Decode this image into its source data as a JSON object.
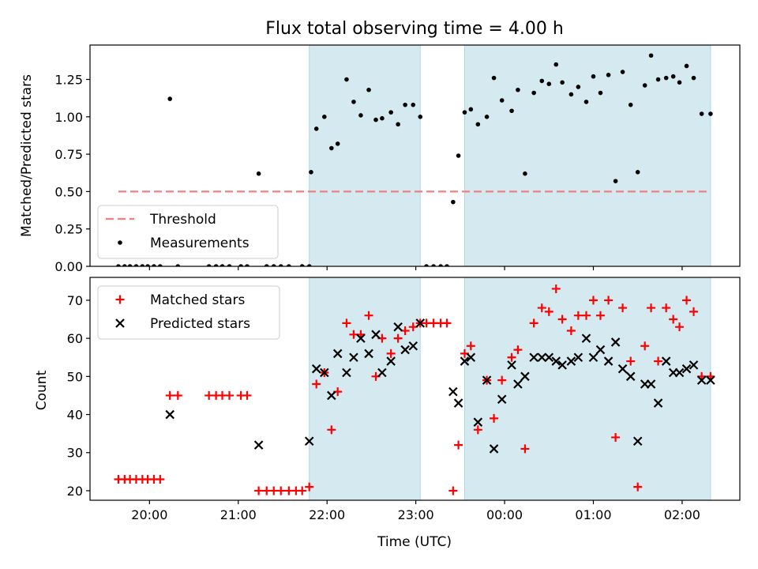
{
  "chart_data": [
    {
      "type": "scatter",
      "title": "Flux total observing time = 4.00 h",
      "xlabel": "",
      "ylabel": "Matched/Predicted stars",
      "ylim": [
        0,
        1.48
      ],
      "xlim": [
        19.33,
        26.65
      ],
      "yticks": [
        0.0,
        0.25,
        0.5,
        0.75,
        1.0,
        1.25
      ],
      "ytick_labels": [
        "0.00",
        "0.25",
        "0.50",
        "0.75",
        "1.00",
        "1.25"
      ],
      "shaded_intervals": [
        [
          21.8,
          23.05
        ],
        [
          23.55,
          26.32
        ]
      ],
      "threshold": {
        "name": "Threshold",
        "y": 0.5,
        "x_range": [
          19.65,
          26.32
        ],
        "color": "#f08080"
      },
      "series": [
        {
          "name": "Measurements",
          "marker": "dot",
          "color": "#000000",
          "x": [
            19.65,
            19.72,
            19.78,
            19.85,
            19.92,
            19.98,
            20.05,
            20.12,
            20.23,
            20.32,
            20.67,
            20.75,
            20.82,
            20.9,
            21.03,
            21.1,
            21.23,
            21.32,
            21.4,
            21.48,
            21.57,
            21.72,
            21.8,
            21.82,
            21.88,
            21.97,
            22.05,
            22.12,
            22.22,
            22.3,
            22.38,
            22.47,
            22.55,
            22.62,
            22.72,
            22.8,
            22.88,
            22.97,
            23.05,
            23.12,
            23.2,
            23.28,
            23.35,
            23.42,
            23.48,
            23.55,
            23.62,
            23.7,
            23.8,
            23.88,
            23.97,
            24.08,
            24.15,
            24.23,
            24.33,
            24.42,
            24.5,
            24.58,
            24.65,
            24.75,
            24.83,
            24.92,
            25.0,
            25.08,
            25.17,
            25.25,
            25.33,
            25.42,
            25.5,
            25.58,
            25.65,
            25.73,
            25.82,
            25.9,
            25.97,
            26.05,
            26.13,
            26.22,
            26.32
          ],
          "y": [
            0,
            0,
            0,
            0,
            0,
            0,
            0,
            0,
            1.12,
            0,
            0,
            0,
            0,
            0,
            0,
            0,
            0.62,
            0,
            0,
            0,
            0,
            0,
            0,
            0.63,
            0.92,
            1.0,
            0.79,
            0.82,
            1.25,
            1.1,
            1.01,
            1.18,
            0.98,
            0.99,
            1.03,
            0.95,
            1.08,
            1.08,
            1.0,
            0,
            0,
            0,
            0,
            0.43,
            0.74,
            1.03,
            1.05,
            0.95,
            1.0,
            1.26,
            1.11,
            1.04,
            1.18,
            0.62,
            1.16,
            1.24,
            1.22,
            1.35,
            1.23,
            1.15,
            1.2,
            1.1,
            1.27,
            1.16,
            1.28,
            0.57,
            1.3,
            1.08,
            0.63,
            1.21,
            1.41,
            1.25,
            1.26,
            1.27,
            1.23,
            1.34,
            1.26,
            1.02,
            1.02
          ]
        }
      ]
    },
    {
      "type": "scatter",
      "title": "",
      "xlabel": "Time (UTC)",
      "ylabel": "Count",
      "ylim": [
        17.5,
        76
      ],
      "xlim": [
        19.33,
        26.65
      ],
      "yticks": [
        20,
        30,
        40,
        50,
        60,
        70
      ],
      "ytick_labels": [
        "20",
        "30",
        "40",
        "50",
        "60",
        "70"
      ],
      "xticks": [
        20,
        21,
        22,
        23,
        24,
        25,
        26
      ],
      "xtick_labels": [
        "20:00",
        "21:00",
        "22:00",
        "23:00",
        "00:00",
        "01:00",
        "02:00"
      ],
      "shaded_intervals": [
        [
          21.8,
          23.05
        ],
        [
          23.55,
          26.32
        ]
      ],
      "series": [
        {
          "name": "Matched stars",
          "marker": "plus",
          "color": "#ff0000",
          "x": [
            19.65,
            19.72,
            19.78,
            19.85,
            19.92,
            19.98,
            20.05,
            20.12,
            20.23,
            20.32,
            20.67,
            20.75,
            20.82,
            20.9,
            21.03,
            21.1,
            21.23,
            21.32,
            21.4,
            21.48,
            21.57,
            21.65,
            21.72,
            21.8,
            21.88,
            21.97,
            22.05,
            22.12,
            22.22,
            22.3,
            22.38,
            22.47,
            22.55,
            22.62,
            22.72,
            22.8,
            22.88,
            22.97,
            23.05,
            23.12,
            23.2,
            23.28,
            23.35,
            23.42,
            23.48,
            23.55,
            23.62,
            23.7,
            23.8,
            23.88,
            23.97,
            24.08,
            24.15,
            24.23,
            24.33,
            24.42,
            24.5,
            24.58,
            24.65,
            24.75,
            24.83,
            24.92,
            25.0,
            25.08,
            25.17,
            25.25,
            25.33,
            25.42,
            25.5,
            25.58,
            25.65,
            25.73,
            25.82,
            25.9,
            25.97,
            26.05,
            26.13,
            26.22,
            26.32
          ],
          "y": [
            23,
            23,
            23,
            23,
            23,
            23,
            23,
            23,
            45,
            45,
            45,
            45,
            45,
            45,
            45,
            45,
            20,
            20,
            20,
            20,
            20,
            20,
            20,
            21,
            48,
            51,
            36,
            46,
            64,
            61,
            61,
            66,
            50,
            60,
            56,
            60,
            62,
            63,
            64,
            64,
            64,
            64,
            64,
            20,
            32,
            56,
            58,
            36,
            49,
            39,
            49,
            55,
            57,
            31,
            64,
            68,
            67,
            73,
            65,
            62,
            66,
            66,
            70,
            66,
            70,
            34,
            68,
            54,
            21,
            58,
            68,
            54,
            68,
            65,
            63,
            70,
            67,
            50,
            50
          ]
        },
        {
          "name": "Predicted stars",
          "marker": "x",
          "color": "#000000",
          "x": [
            20.23,
            21.23,
            21.8,
            21.88,
            21.97,
            22.05,
            22.12,
            22.22,
            22.3,
            22.38,
            22.47,
            22.55,
            22.62,
            22.72,
            22.8,
            22.88,
            22.97,
            23.05,
            23.42,
            23.48,
            23.55,
            23.62,
            23.7,
            23.8,
            23.88,
            23.97,
            24.08,
            24.15,
            24.23,
            24.33,
            24.42,
            24.5,
            24.58,
            24.65,
            24.75,
            24.83,
            24.92,
            25.0,
            25.08,
            25.17,
            25.25,
            25.33,
            25.42,
            25.5,
            25.58,
            25.65,
            25.73,
            25.82,
            25.9,
            25.97,
            26.05,
            26.13,
            26.22,
            26.32
          ],
          "y": [
            40,
            32,
            33,
            52,
            51,
            45,
            56,
            51,
            55,
            60,
            56,
            61,
            51,
            54,
            63,
            57,
            58,
            64,
            46,
            43,
            54,
            55,
            38,
            49,
            31,
            44,
            53,
            48,
            50,
            55,
            55,
            55,
            54,
            53,
            54,
            55,
            60,
            55,
            57,
            54,
            59,
            52,
            50,
            33,
            48,
            48,
            43,
            54,
            51,
            51,
            52,
            53,
            49,
            49
          ]
        }
      ]
    }
  ],
  "legends": {
    "top": [
      {
        "label": "Threshold",
        "style": "dash-line",
        "color": "#f08080"
      },
      {
        "label": "Measurements",
        "style": "dot",
        "color": "#000000"
      }
    ],
    "bottom": [
      {
        "label": "Matched stars",
        "style": "plus",
        "color": "#ff0000"
      },
      {
        "label": "Predicted stars",
        "style": "x",
        "color": "#000000"
      }
    ]
  },
  "colors": {
    "shade": "#d4eaf0",
    "shade_edge": "#add8e6"
  }
}
